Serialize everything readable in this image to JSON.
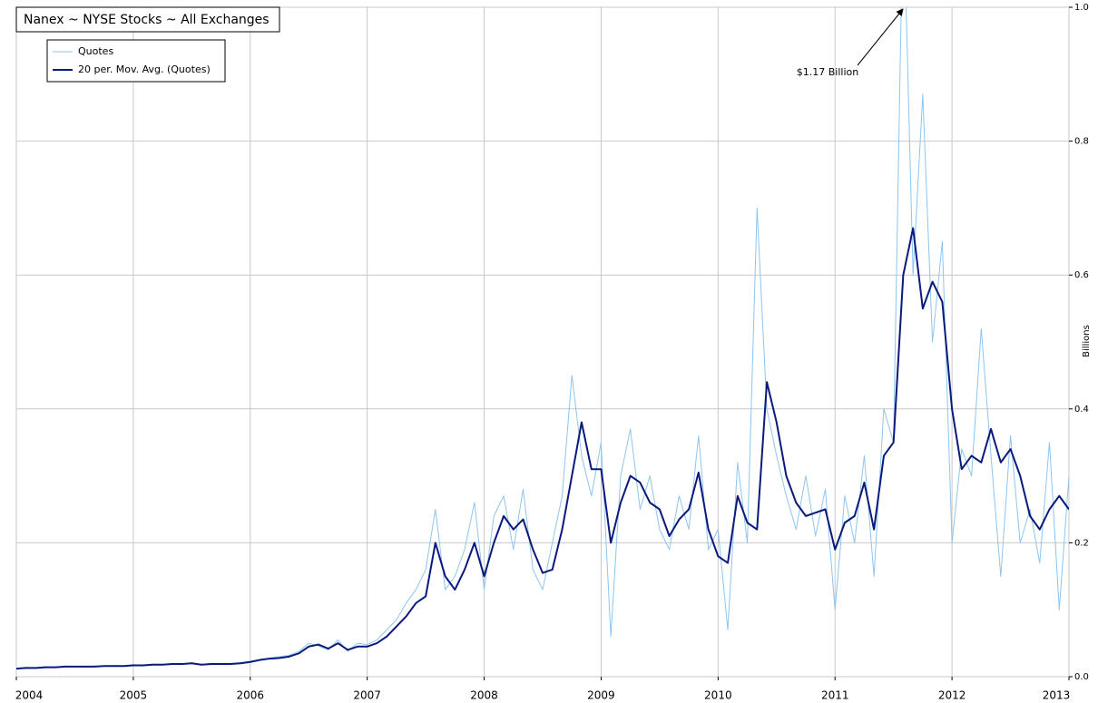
{
  "chart_data": {
    "type": "line",
    "title": "Nanex ~ NYSE Stocks ~ All Exchanges",
    "y_label": "Billions",
    "annotation": "$1.17 Billion",
    "x": [
      2004,
      2004.083,
      2004.167,
      2004.25,
      2004.333,
      2004.417,
      2004.5,
      2004.583,
      2004.667,
      2004.75,
      2004.833,
      2004.917,
      2005,
      2005.083,
      2005.167,
      2005.25,
      2005.333,
      2005.417,
      2005.5,
      2005.583,
      2005.667,
      2005.75,
      2005.833,
      2005.917,
      2006,
      2006.083,
      2006.167,
      2006.25,
      2006.333,
      2006.417,
      2006.5,
      2006.583,
      2006.667,
      2006.75,
      2006.833,
      2006.917,
      2007,
      2007.083,
      2007.167,
      2007.25,
      2007.333,
      2007.417,
      2007.5,
      2007.583,
      2007.667,
      2007.75,
      2007.833,
      2007.917,
      2008,
      2008.083,
      2008.167,
      2008.25,
      2008.333,
      2008.417,
      2008.5,
      2008.583,
      2008.667,
      2008.75,
      2008.833,
      2008.917,
      2009,
      2009.083,
      2009.167,
      2009.25,
      2009.333,
      2009.417,
      2009.5,
      2009.583,
      2009.667,
      2009.75,
      2009.833,
      2009.917,
      2010,
      2010.083,
      2010.167,
      2010.25,
      2010.333,
      2010.417,
      2010.5,
      2010.583,
      2010.667,
      2010.75,
      2010.833,
      2010.917,
      2011,
      2011.083,
      2011.167,
      2011.25,
      2011.333,
      2011.417,
      2011.5,
      2011.583,
      2011.667,
      2011.75,
      2011.833,
      2011.917,
      2012,
      2012.083,
      2012.167,
      2012.25,
      2012.333,
      2012.417,
      2012.5,
      2012.583,
      2012.667,
      2012.75,
      2012.833,
      2012.917,
      2013
    ],
    "series": [
      {
        "name": "Quotes",
        "color": "#8ec5f0",
        "width": 1,
        "values": [
          0.012,
          0.014,
          0.013,
          0.015,
          0.014,
          0.016,
          0.015,
          0.014,
          0.016,
          0.016,
          0.017,
          0.016,
          0.018,
          0.017,
          0.019,
          0.018,
          0.02,
          0.019,
          0.021,
          0.018,
          0.02,
          0.019,
          0.02,
          0.021,
          0.023,
          0.026,
          0.028,
          0.03,
          0.032,
          0.038,
          0.05,
          0.046,
          0.04,
          0.055,
          0.038,
          0.05,
          0.048,
          0.055,
          0.07,
          0.085,
          0.11,
          0.13,
          0.16,
          0.25,
          0.13,
          0.15,
          0.19,
          0.26,
          0.13,
          0.24,
          0.27,
          0.19,
          0.28,
          0.16,
          0.13,
          0.2,
          0.27,
          0.45,
          0.33,
          0.27,
          0.35,
          0.06,
          0.3,
          0.37,
          0.25,
          0.3,
          0.22,
          0.19,
          0.27,
          0.22,
          0.36,
          0.19,
          0.22,
          0.07,
          0.32,
          0.2,
          0.7,
          0.4,
          0.33,
          0.27,
          0.22,
          0.3,
          0.21,
          0.28,
          0.1,
          0.27,
          0.2,
          0.33,
          0.15,
          0.4,
          0.35,
          1.17,
          0.6,
          0.87,
          0.5,
          0.65,
          0.2,
          0.34,
          0.3,
          0.52,
          0.33,
          0.15,
          0.36,
          0.2,
          0.25,
          0.17,
          0.35,
          0.1,
          0.3
        ]
      },
      {
        "name": "20 per. Mov. Avg. (Quotes)",
        "color": "#0a1a7a",
        "width": 2,
        "values": [
          0.012,
          0.013,
          0.013,
          0.014,
          0.014,
          0.015,
          0.015,
          0.015,
          0.015,
          0.016,
          0.016,
          0.016,
          0.017,
          0.017,
          0.018,
          0.018,
          0.019,
          0.019,
          0.02,
          0.018,
          0.019,
          0.019,
          0.019,
          0.02,
          0.022,
          0.025,
          0.027,
          0.028,
          0.03,
          0.035,
          0.045,
          0.048,
          0.042,
          0.05,
          0.04,
          0.045,
          0.045,
          0.05,
          0.06,
          0.075,
          0.09,
          0.11,
          0.12,
          0.2,
          0.15,
          0.13,
          0.16,
          0.2,
          0.15,
          0.2,
          0.24,
          0.22,
          0.235,
          0.19,
          0.155,
          0.16,
          0.22,
          0.3,
          0.38,
          0.31,
          0.31,
          0.2,
          0.26,
          0.3,
          0.29,
          0.26,
          0.25,
          0.21,
          0.235,
          0.25,
          0.305,
          0.22,
          0.18,
          0.17,
          0.27,
          0.23,
          0.22,
          0.44,
          0.38,
          0.3,
          0.26,
          0.24,
          0.245,
          0.25,
          0.19,
          0.23,
          0.24,
          0.29,
          0.22,
          0.33,
          0.35,
          0.6,
          0.67,
          0.55,
          0.59,
          0.56,
          0.4,
          0.31,
          0.33,
          0.32,
          0.37,
          0.32,
          0.34,
          0.3,
          0.24,
          0.22,
          0.25,
          0.27,
          0.25
        ]
      }
    ],
    "xlim": [
      2004,
      2013
    ],
    "xticks": [
      2004,
      2005,
      2006,
      2007,
      2008,
      2009,
      2010,
      2011,
      2012,
      2013
    ],
    "ylim": [
      0,
      1
    ],
    "yticks": [
      {
        "value": 0,
        "label": "0.0"
      },
      0.2,
      0.4,
      0.6,
      0.8,
      {
        "value": 1,
        "label": "1.0"
      }
    ],
    "grid": true
  }
}
